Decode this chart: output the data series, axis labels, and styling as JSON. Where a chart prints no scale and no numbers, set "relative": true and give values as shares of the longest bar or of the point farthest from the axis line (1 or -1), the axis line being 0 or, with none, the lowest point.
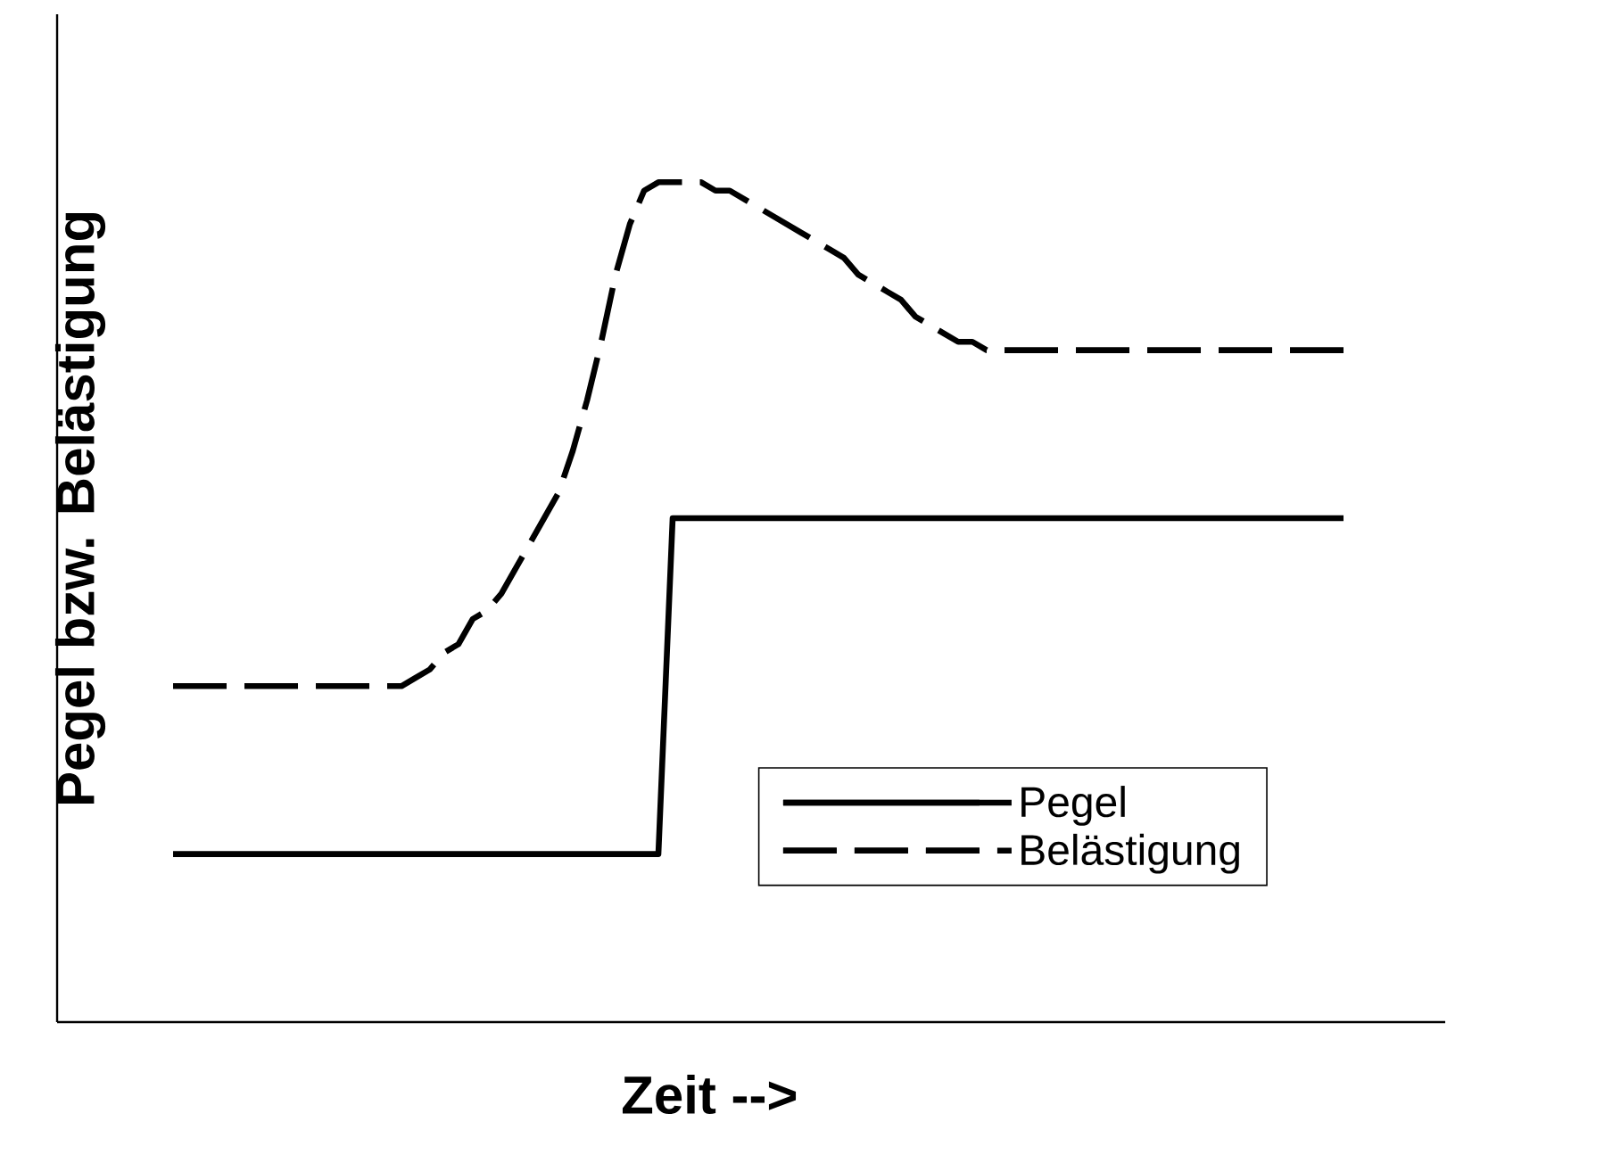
{
  "chart_data": {
    "type": "line",
    "relative": true,
    "xlabel": "Zeit -->",
    "ylabel": "Pegel bzw. Belästigung",
    "legend": "bottom right",
    "categories": [
      null,
      null,
      null,
      null,
      null,
      null,
      null,
      null,
      null,
      null,
      null,
      null,
      null,
      null,
      null,
      null,
      null,
      null,
      null,
      null,
      null,
      null,
      null,
      null,
      null,
      null,
      null,
      null,
      null,
      null,
      null,
      null,
      null,
      null,
      null,
      null,
      null,
      null,
      null,
      null,
      null,
      null,
      null,
      null,
      null,
      null,
      null,
      null,
      null,
      null,
      null,
      null,
      null,
      null,
      null,
      null,
      null,
      null,
      null,
      null,
      null,
      null,
      null,
      null,
      null,
      null,
      null,
      null,
      null,
      null,
      null,
      null,
      null,
      null,
      null,
      null,
      null,
      null,
      null,
      null,
      null,
      null,
      null
    ],
    "series": [
      {
        "name": "Pegel",
        "color": "#000000",
        "line_style": "solid",
        "values": [
          0.2,
          0.2,
          0.2,
          0.2,
          0.2,
          0.2,
          0.2,
          0.2,
          0.2,
          0.2,
          0.2,
          0.2,
          0.2,
          0.2,
          0.2,
          0.2,
          0.2,
          0.2,
          0.2,
          0.2,
          0.2,
          0.2,
          0.2,
          0.2,
          0.2,
          0.2,
          0.2,
          0.2,
          0.2,
          0.2,
          0.2,
          0.2,
          0.2,
          0.2,
          0.2,
          0.6,
          0.6,
          0.6,
          0.6,
          0.6,
          0.6,
          0.6,
          0.6,
          0.6,
          0.6,
          0.6,
          0.6,
          0.6,
          0.6,
          0.6,
          0.6,
          0.6,
          0.6,
          0.6,
          0.6,
          0.6,
          0.6,
          0.6,
          0.6,
          0.6,
          0.6,
          0.6,
          0.6,
          0.6,
          0.6,
          0.6,
          0.6,
          0.6,
          0.6,
          0.6,
          0.6,
          0.6,
          0.6,
          0.6,
          0.6,
          0.6,
          0.6,
          0.6,
          0.6,
          0.6,
          0.6,
          0.6,
          0.6
        ]
      },
      {
        "name": "Belästigung",
        "color": "#000000",
        "line_style": "dashed",
        "values": [
          0.4,
          0.4,
          0.4,
          0.4,
          0.4,
          0.4,
          0.4,
          0.4,
          0.4,
          0.4,
          0.4,
          0.4,
          0.4,
          0.4,
          0.4,
          0.4,
          0.4,
          0.41,
          0.42,
          0.44,
          0.45,
          0.48,
          0.49,
          0.51,
          0.54,
          0.57,
          0.6,
          0.63,
          0.68,
          0.74,
          0.81,
          0.89,
          0.95,
          0.99,
          1.0,
          1.0,
          1.0,
          1.0,
          0.99,
          0.99,
          0.98,
          0.97,
          0.96,
          0.95,
          0.94,
          0.93,
          0.92,
          0.91,
          0.89,
          0.88,
          0.87,
          0.86,
          0.84,
          0.83,
          0.82,
          0.81,
          0.81,
          0.8,
          0.8,
          0.8,
          0.8,
          0.8,
          0.8,
          0.8,
          0.8,
          0.8,
          0.8,
          0.8,
          0.8,
          0.8,
          0.8,
          0.8,
          0.8,
          0.8,
          0.8,
          0.8,
          0.8,
          0.8,
          0.8,
          0.8,
          0.8,
          0.8,
          0.8
        ]
      }
    ]
  }
}
